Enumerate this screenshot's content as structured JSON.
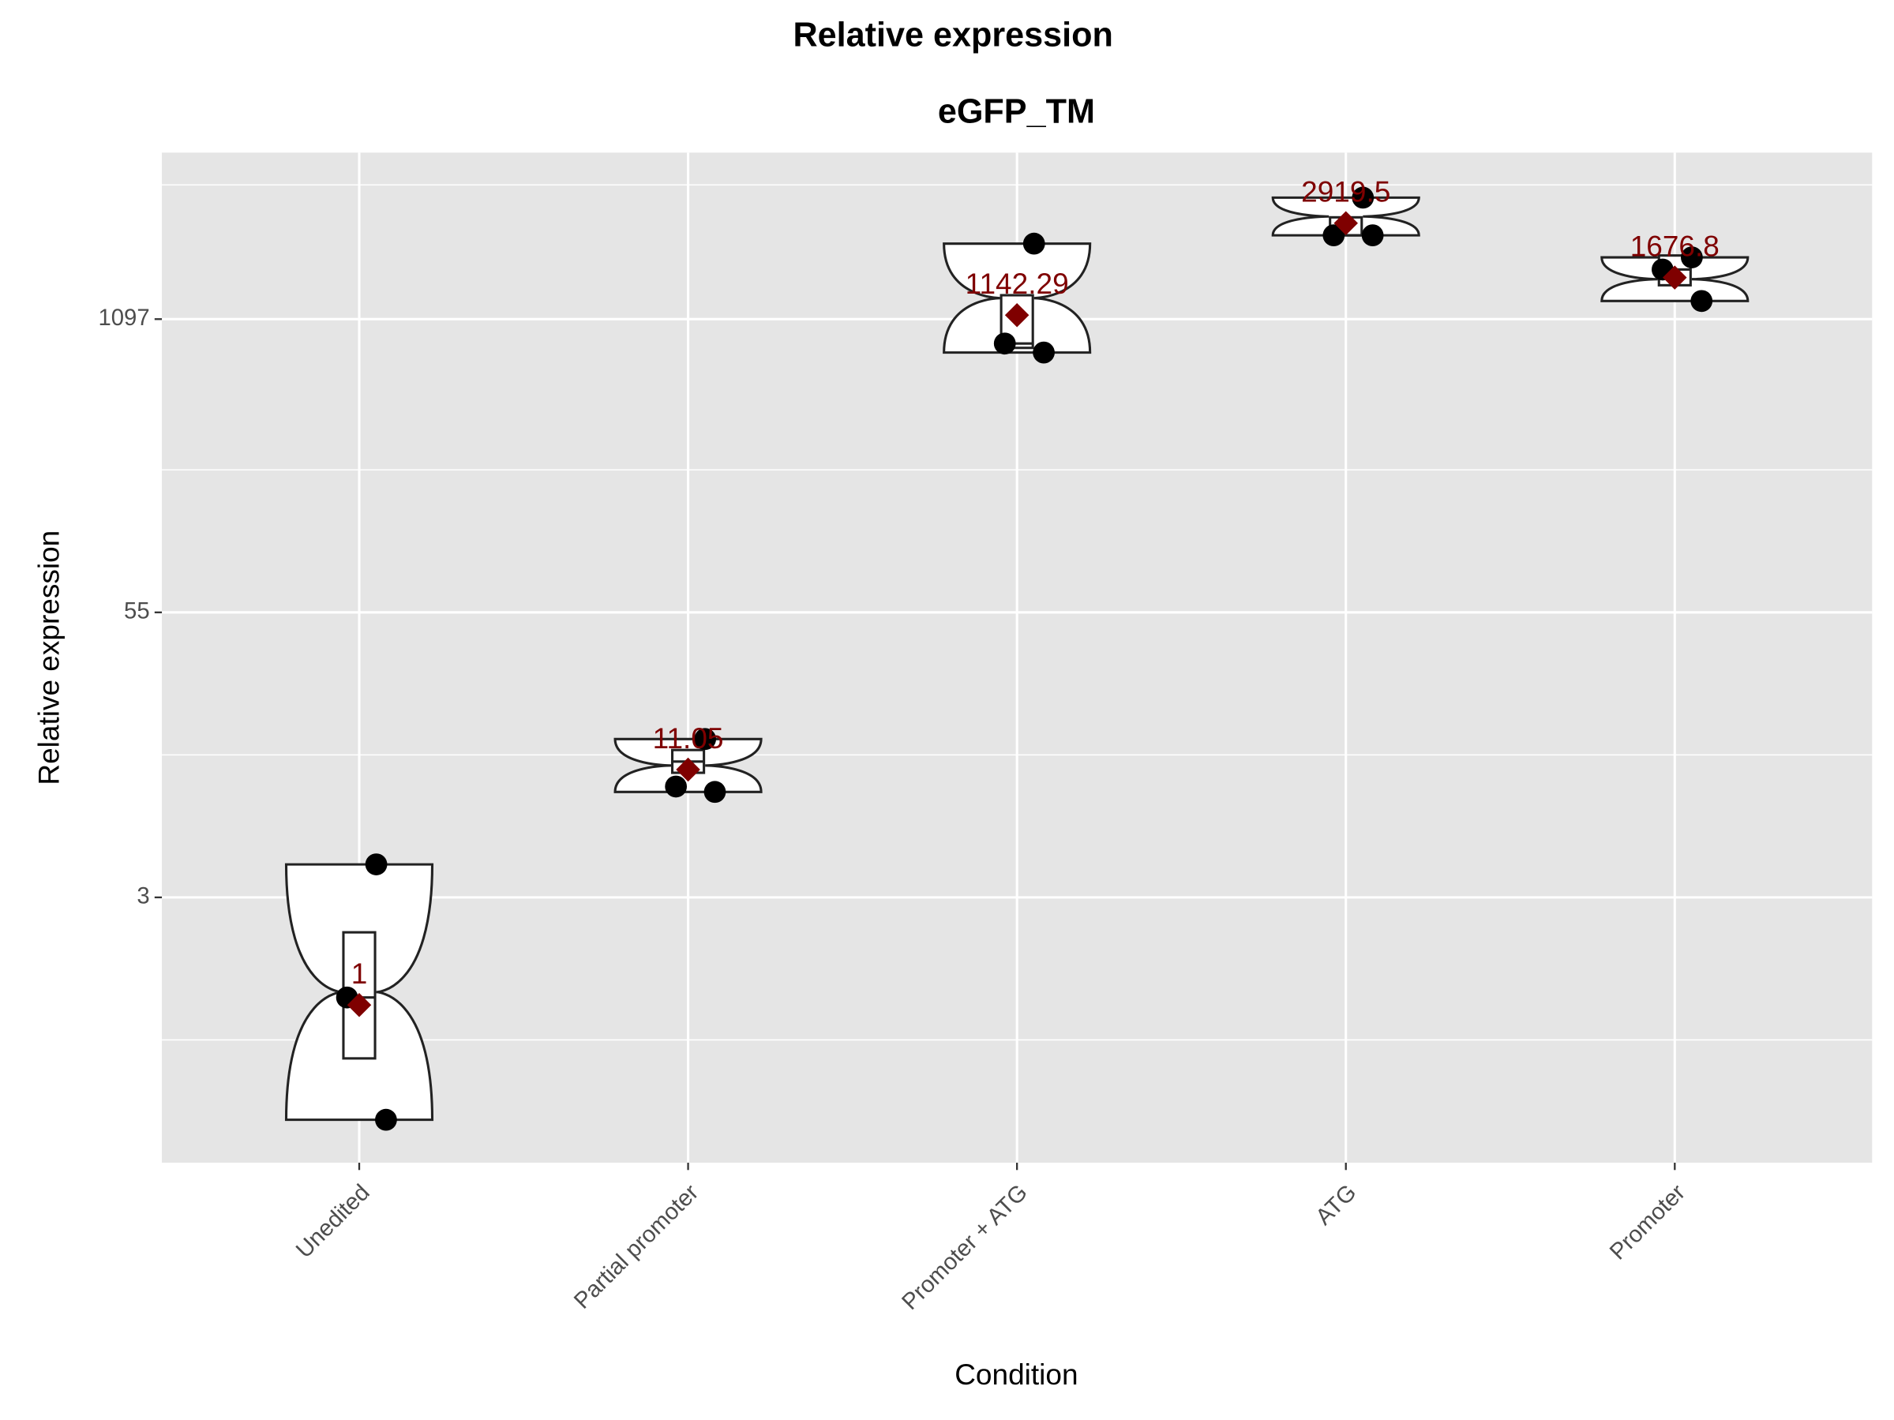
{
  "chart_data": {
    "type": "violin",
    "title": "Relative expression",
    "subtitle": "eGFP_TM",
    "x_label": "Condition",
    "y_label": "Relative expression",
    "categories": [
      "Unedited",
      "Partial promoter",
      "Promoter + ATG",
      "ATG",
      "Promoter"
    ],
    "points": [
      [
        4.2,
        1.08,
        0.31
      ],
      [
        15.1,
        9.3,
        8.8
      ],
      [
        2370,
        855,
        780
      ],
      [
        3790,
        2580,
        2580
      ],
      [
        2060,
        1820,
        1320
      ]
    ],
    "q1": [
      0.58,
      10.7,
      818,
      2580,
      1550
    ],
    "median": [
      1.08,
      12,
      855,
      2580,
      1820
    ],
    "q3": [
      2.1,
      13.5,
      1400,
      3100,
      2100
    ],
    "means": [
      1,
      11.05,
      1142.29,
      2919.5,
      1676.8
    ],
    "mean_color": "#7f0000",
    "point_color": "#000000",
    "ylim": [
      0.2,
      6000
    ],
    "yticks": [
      3,
      55,
      1097
    ],
    "log_y": true,
    "grid": true
  }
}
